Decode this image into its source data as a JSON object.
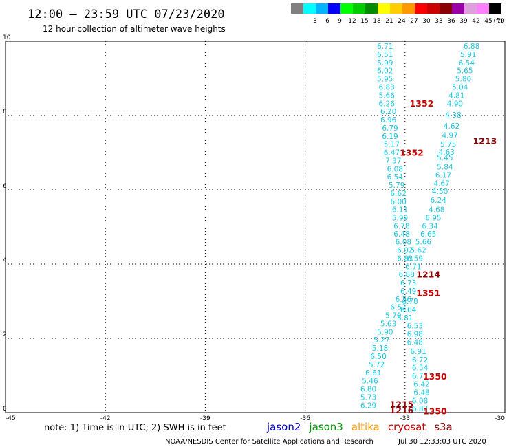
{
  "header": {
    "title": "12:00 – 23:59 UTC 07/23/2020",
    "subtitle": "12 hour collection of altimeter wave heights"
  },
  "legend": {
    "unit": "(ft)",
    "bins": [
      {
        "color": "#808080",
        "label": ""
      },
      {
        "color": "#00ffff",
        "label": "3"
      },
      {
        "color": "#00b4ff",
        "label": "6"
      },
      {
        "color": "#0000ff",
        "label": "9"
      },
      {
        "color": "#00ff00",
        "label": "12"
      },
      {
        "color": "#00cd00",
        "label": "15"
      },
      {
        "color": "#008b00",
        "label": "18"
      },
      {
        "color": "#ffff00",
        "label": "21"
      },
      {
        "color": "#ffcd00",
        "label": "24"
      },
      {
        "color": "#ff9900",
        "label": "27"
      },
      {
        "color": "#ff0000",
        "label": "30"
      },
      {
        "color": "#cd0000",
        "label": "33"
      },
      {
        "color": "#8b0000",
        "label": "36"
      },
      {
        "color": "#9b00a8",
        "label": "39"
      },
      {
        "color": "#dda0dd",
        "label": "42"
      },
      {
        "color": "#ff80ff",
        "label": "45"
      },
      {
        "color": "#000000",
        "label": "70"
      }
    ]
  },
  "note": "note:  1) Time is in UTC;  2) SWH is in feet",
  "satellites": [
    {
      "name": "jason2",
      "color": "#0000cd"
    },
    {
      "name": "jason3",
      "color": "#009900"
    },
    {
      "name": "altika",
      "color": "#ff9900"
    },
    {
      "name": "cryosat",
      "color": "#cc0000"
    },
    {
      "name": "s3a",
      "color": "#8b0000"
    }
  ],
  "footer": {
    "credit": "NOAA/NESDIS Center for Satellite Applications and Research",
    "timestamp": "Jul 30 12:33:03 UTC 2020"
  },
  "chart_data": {
    "type": "scatter",
    "title": "12:00 – 23:59 UTC 07/23/2020",
    "subtitle": "12 hour collection of altimeter wave heights",
    "xlim": [
      -45,
      -30
    ],
    "ylim": [
      0,
      10
    ],
    "x_ticks": [
      "-45",
      "-42",
      "-39",
      "-36",
      "-33",
      "-30"
    ],
    "y_ticks": [
      "0",
      "2",
      "4",
      "6",
      "8",
      "10"
    ],
    "grid": true,
    "swh_points": [
      {
        "x": -33.6,
        "y": 9.85,
        "v": "6.71"
      },
      {
        "x": -33.6,
        "y": 9.63,
        "v": "6.51"
      },
      {
        "x": -33.6,
        "y": 9.41,
        "v": "5.99"
      },
      {
        "x": -33.6,
        "y": 9.19,
        "v": "6.02"
      },
      {
        "x": -33.6,
        "y": 8.97,
        "v": "5.95"
      },
      {
        "x": -33.55,
        "y": 8.75,
        "v": "6.83"
      },
      {
        "x": -33.55,
        "y": 8.53,
        "v": "5.66"
      },
      {
        "x": -33.55,
        "y": 8.31,
        "v": "6.26"
      },
      {
        "x": -33.5,
        "y": 8.09,
        "v": "6.20"
      },
      {
        "x": -33.5,
        "y": 7.87,
        "v": "6.96"
      },
      {
        "x": -33.45,
        "y": 7.65,
        "v": "6.79"
      },
      {
        "x": -33.45,
        "y": 7.43,
        "v": "6.19"
      },
      {
        "x": -33.4,
        "y": 7.21,
        "v": "5.17"
      },
      {
        "x": -33.4,
        "y": 6.99,
        "v": "6.47"
      },
      {
        "x": -33.35,
        "y": 6.77,
        "v": "7.37"
      },
      {
        "x": -33.3,
        "y": 6.55,
        "v": "6.08"
      },
      {
        "x": -33.3,
        "y": 6.33,
        "v": "6.54"
      },
      {
        "x": -33.25,
        "y": 6.11,
        "v": "5.79"
      },
      {
        "x": -33.2,
        "y": 5.89,
        "v": "6.62"
      },
      {
        "x": -33.2,
        "y": 5.67,
        "v": "6.00"
      },
      {
        "x": -33.15,
        "y": 5.45,
        "v": "6.11"
      },
      {
        "x": -33.15,
        "y": 5.23,
        "v": "5.99"
      },
      {
        "x": -33.1,
        "y": 5.01,
        "v": "6.78"
      },
      {
        "x": -33.1,
        "y": 4.8,
        "v": "6.48"
      },
      {
        "x": -33.05,
        "y": 4.58,
        "v": "6.08"
      },
      {
        "x": -33.0,
        "y": 4.36,
        "v": "6.02"
      },
      {
        "x": -33.0,
        "y": 4.14,
        "v": "6.83"
      },
      {
        "x": -32.95,
        "y": 3.7,
        "v": "6.88"
      },
      {
        "x": -32.9,
        "y": 3.48,
        "v": "6.73"
      },
      {
        "x": -32.9,
        "y": 3.26,
        "v": "6.49"
      },
      {
        "x": -33.05,
        "y": 3.04,
        "v": "6.56"
      },
      {
        "x": -33.2,
        "y": 2.82,
        "v": "6.52"
      },
      {
        "x": -33.35,
        "y": 2.6,
        "v": "5.70"
      },
      {
        "x": -33.5,
        "y": 2.38,
        "v": "5.63"
      },
      {
        "x": -33.6,
        "y": 2.16,
        "v": "5.90"
      },
      {
        "x": -33.7,
        "y": 1.94,
        "v": "5.27"
      },
      {
        "x": -33.75,
        "y": 1.72,
        "v": "5.18"
      },
      {
        "x": -33.8,
        "y": 1.5,
        "v": "6.50"
      },
      {
        "x": -33.85,
        "y": 1.28,
        "v": "5.72"
      },
      {
        "x": -33.95,
        "y": 1.06,
        "v": "6.61"
      },
      {
        "x": -34.05,
        "y": 0.84,
        "v": "5.46"
      },
      {
        "x": -34.1,
        "y": 0.62,
        "v": "6.80"
      },
      {
        "x": -34.1,
        "y": 0.4,
        "v": "5.73"
      },
      {
        "x": -34.1,
        "y": 0.18,
        "v": "6.29"
      },
      {
        "x": -31.0,
        "y": 9.85,
        "v": "6.88"
      },
      {
        "x": -31.1,
        "y": 9.63,
        "v": "5.91"
      },
      {
        "x": -31.15,
        "y": 9.41,
        "v": "6.54"
      },
      {
        "x": -31.2,
        "y": 9.19,
        "v": "5.65"
      },
      {
        "x": -31.25,
        "y": 8.97,
        "v": "5.80"
      },
      {
        "x": -31.35,
        "y": 8.75,
        "v": "5.04"
      },
      {
        "x": -31.45,
        "y": 8.53,
        "v": "4.81"
      },
      {
        "x": -31.5,
        "y": 8.31,
        "v": "4.90"
      },
      {
        "x": -31.55,
        "y": 8.0,
        "v": "4.38"
      },
      {
        "x": -31.6,
        "y": 7.7,
        "v": "4.62"
      },
      {
        "x": -31.65,
        "y": 7.45,
        "v": "4.97"
      },
      {
        "x": -31.7,
        "y": 7.2,
        "v": "5.75"
      },
      {
        "x": -31.75,
        "y": 7.0,
        "v": "4.63"
      },
      {
        "x": -31.8,
        "y": 6.85,
        "v": "5.45"
      },
      {
        "x": -31.8,
        "y": 6.6,
        "v": "5.84"
      },
      {
        "x": -31.85,
        "y": 6.38,
        "v": "6.17"
      },
      {
        "x": -31.9,
        "y": 6.16,
        "v": "4.67"
      },
      {
        "x": -31.95,
        "y": 5.94,
        "v": "4.50"
      },
      {
        "x": -32.0,
        "y": 5.7,
        "v": "6.24"
      },
      {
        "x": -32.05,
        "y": 5.45,
        "v": "4.68"
      },
      {
        "x": -32.15,
        "y": 5.23,
        "v": "6.95"
      },
      {
        "x": -32.25,
        "y": 5.01,
        "v": "6.34"
      },
      {
        "x": -32.3,
        "y": 4.8,
        "v": "6.65"
      },
      {
        "x": -32.45,
        "y": 4.58,
        "v": "5.66"
      },
      {
        "x": -32.6,
        "y": 4.36,
        "v": "5.62"
      },
      {
        "x": -32.7,
        "y": 4.14,
        "v": "6.59"
      },
      {
        "x": -32.75,
        "y": 3.92,
        "v": "6.71"
      },
      {
        "x": -32.85,
        "y": 2.98,
        "v": "6.78"
      },
      {
        "x": -32.9,
        "y": 2.76,
        "v": "6.64"
      },
      {
        "x": -33.0,
        "y": 2.54,
        "v": "5.81"
      },
      {
        "x": -32.7,
        "y": 2.32,
        "v": "6.53"
      },
      {
        "x": -32.7,
        "y": 2.1,
        "v": "6.98"
      },
      {
        "x": -32.7,
        "y": 1.88,
        "v": "6.48"
      },
      {
        "x": -32.6,
        "y": 1.63,
        "v": "6.91"
      },
      {
        "x": -32.55,
        "y": 1.41,
        "v": "6.72"
      },
      {
        "x": -32.55,
        "y": 1.19,
        "v": "6.54"
      },
      {
        "x": -32.55,
        "y": 0.97,
        "v": "6.77"
      },
      {
        "x": -32.5,
        "y": 0.75,
        "v": "6.42"
      },
      {
        "x": -32.5,
        "y": 0.53,
        "v": "6.48"
      },
      {
        "x": -32.55,
        "y": 0.31,
        "v": "6.08"
      },
      {
        "x": -32.55,
        "y": 0.09,
        "v": "6.82"
      }
    ],
    "time_labels": [
      {
        "x": -32.5,
        "y": 8.31,
        "t": "1352",
        "c": "#cc0000"
      },
      {
        "x": -30.6,
        "y": 7.3,
        "t": "1213",
        "c": "#8b0000"
      },
      {
        "x": -32.8,
        "y": 6.98,
        "t": "1352",
        "c": "#cc0000"
      },
      {
        "x": -32.3,
        "y": 3.7,
        "t": "1214",
        "c": "#8b0000"
      },
      {
        "x": -32.3,
        "y": 3.2,
        "t": "1351",
        "c": "#cc0000"
      },
      {
        "x": -32.1,
        "y": 0.95,
        "t": "1350",
        "c": "#cc0000"
      },
      {
        "x": -33.1,
        "y": 0.2,
        "t": "1215",
        "c": "#8b0000"
      },
      {
        "x": -33.1,
        "y": 0.05,
        "t": "1216",
        "c": "#8b0000"
      },
      {
        "x": -32.1,
        "y": 0.02,
        "t": "1350",
        "c": "#cc0000"
      }
    ]
  }
}
